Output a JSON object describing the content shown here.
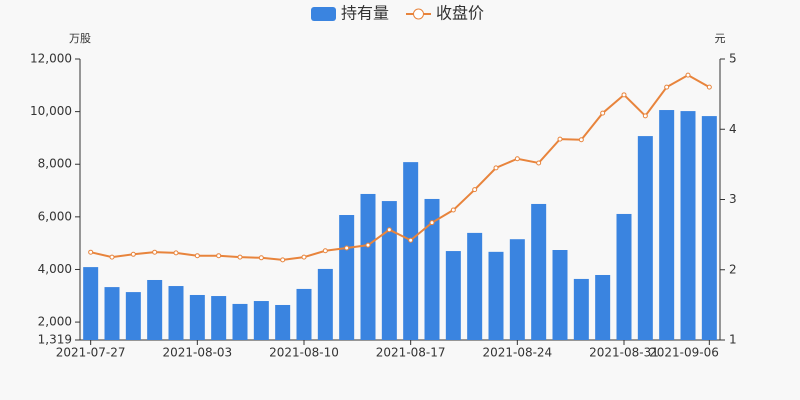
{
  "chart_data": {
    "type": "bar_line",
    "legend": [
      "持有量",
      "收盘价"
    ],
    "y_unit": "万股",
    "y2_unit": "元",
    "categories": [
      "2021-07-27",
      null,
      null,
      null,
      null,
      "2021-08-03",
      null,
      null,
      null,
      null,
      "2021-08-10",
      null,
      null,
      null,
      null,
      "2021-08-17",
      null,
      null,
      null,
      null,
      "2021-08-24",
      null,
      null,
      null,
      null,
      "2021-08-31",
      null,
      null,
      null,
      "2021-09-06"
    ],
    "series": [
      {
        "name": "持有量",
        "type": "bar",
        "color": "#3a84e0",
        "values": [
          4090,
          3330,
          3140,
          3600,
          3370,
          3030,
          2990,
          2690,
          2800,
          2650,
          3260,
          4020,
          6070,
          6870,
          6600,
          8080,
          6680,
          4700,
          5390,
          4670,
          5150,
          6490,
          4740,
          3640,
          3790,
          6110,
          9070,
          10060,
          10020,
          9830
        ]
      },
      {
        "name": "收盘价",
        "type": "line",
        "axis": "y2",
        "color": "#e8843c",
        "values": [
          2.25,
          2.18,
          2.22,
          2.25,
          2.24,
          2.2,
          2.2,
          2.18,
          2.17,
          2.14,
          2.18,
          2.27,
          2.31,
          2.35,
          2.57,
          2.42,
          2.67,
          2.85,
          3.14,
          3.45,
          3.58,
          3.52,
          3.86,
          3.85,
          4.23,
          4.49,
          4.19,
          4.6,
          4.77,
          4.6
        ]
      }
    ],
    "ylim": [
      1319,
      12000
    ],
    "yticks": [
      {
        "value": 1319,
        "label": "1,319"
      },
      {
        "value": 2000,
        "label": "2,000"
      },
      {
        "value": 4000,
        "label": "4,000"
      },
      {
        "value": 6000,
        "label": "6,000"
      },
      {
        "value": 8000,
        "label": "8,000"
      },
      {
        "value": 10000,
        "label": "10,000"
      },
      {
        "value": 12000,
        "label": "12,000"
      }
    ],
    "y2lim": [
      1,
      5
    ],
    "y2ticks": [
      1,
      2,
      3,
      4,
      5
    ]
  }
}
